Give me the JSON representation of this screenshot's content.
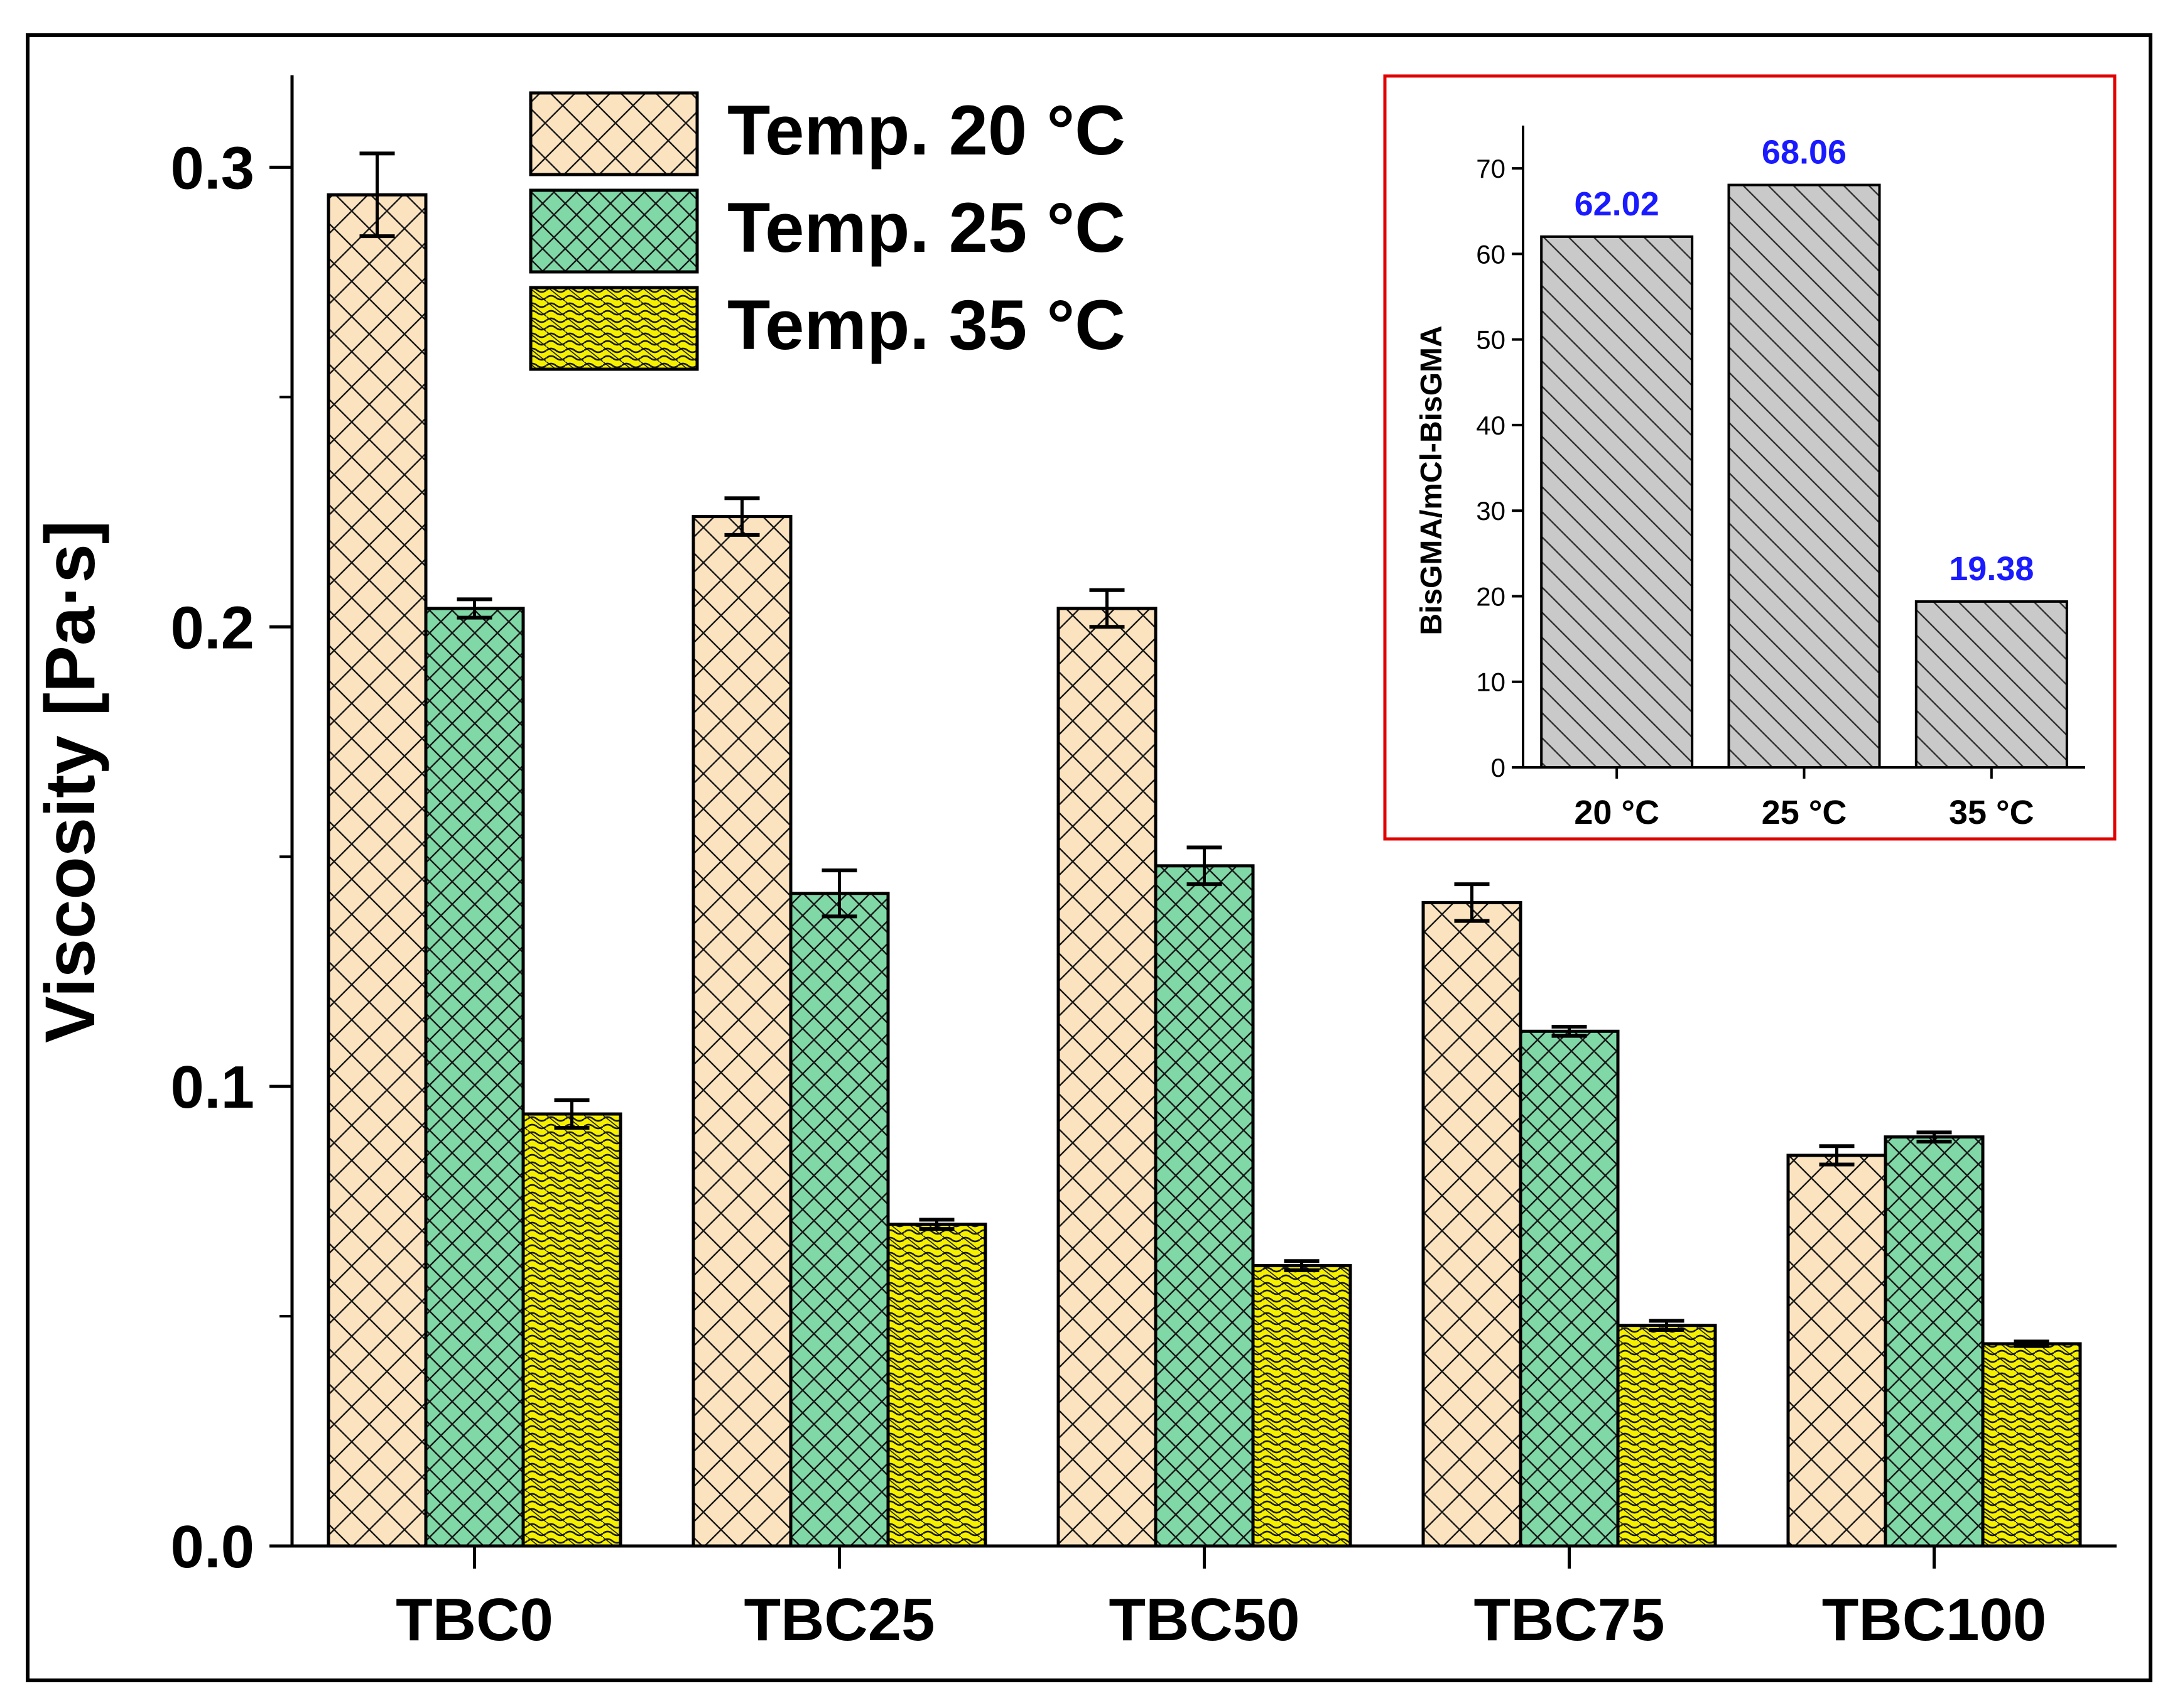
{
  "chart_data": [
    {
      "type": "bar",
      "ylabel": "Viscosity [Pa·s]",
      "ylim": [
        0,
        0.32
      ],
      "y_ticks": [
        0.0,
        0.1,
        0.2,
        0.3
      ],
      "y_tick_labels": [
        "0.0",
        "0.1",
        "0.2",
        "0.3"
      ],
      "categories": [
        "TBC0",
        "TBC25",
        "TBC50",
        "TBC75",
        "TBC100"
      ],
      "series": [
        {
          "name": "Temp. 20 °C",
          "values": [
            0.294,
            0.224,
            0.204,
            0.14,
            0.085
          ],
          "errors": [
            0.009,
            0.004,
            0.004,
            0.004,
            0.002
          ],
          "color": "#fbe3c0",
          "hatch": "crosshatch"
        },
        {
          "name": "Temp. 25 °C",
          "values": [
            0.204,
            0.142,
            0.148,
            0.112,
            0.089
          ],
          "errors": [
            0.002,
            0.005,
            0.004,
            0.001,
            0.001
          ],
          "color": "#7fd8a6",
          "hatch": "dense-crosshatch"
        },
        {
          "name": "Temp. 35 °C",
          "values": [
            0.094,
            0.07,
            0.061,
            0.048,
            0.044
          ],
          "errors": [
            0.003,
            0.001,
            0.001,
            0.001,
            0.0005
          ],
          "color": "#f5f000",
          "hatch": "weave"
        }
      ],
      "legend_position": "top-center",
      "grid": false
    },
    {
      "type": "bar",
      "ylabel": "BisGMA/mCl-BisGMA",
      "ylim": [
        0,
        75
      ],
      "y_ticks": [
        0,
        10,
        20,
        30,
        40,
        50,
        60,
        70
      ],
      "categories": [
        "20 °C",
        "25 °C",
        "35 °C"
      ],
      "values": [
        62.02,
        68.06,
        19.38
      ],
      "value_labels": [
        "62.02",
        "68.06",
        "19.38"
      ],
      "value_label_color": "#1a1aff",
      "bar_color": "#c9c9c9",
      "frame_color": "#e00000",
      "placement": "inset top-right",
      "grid": false
    }
  ]
}
